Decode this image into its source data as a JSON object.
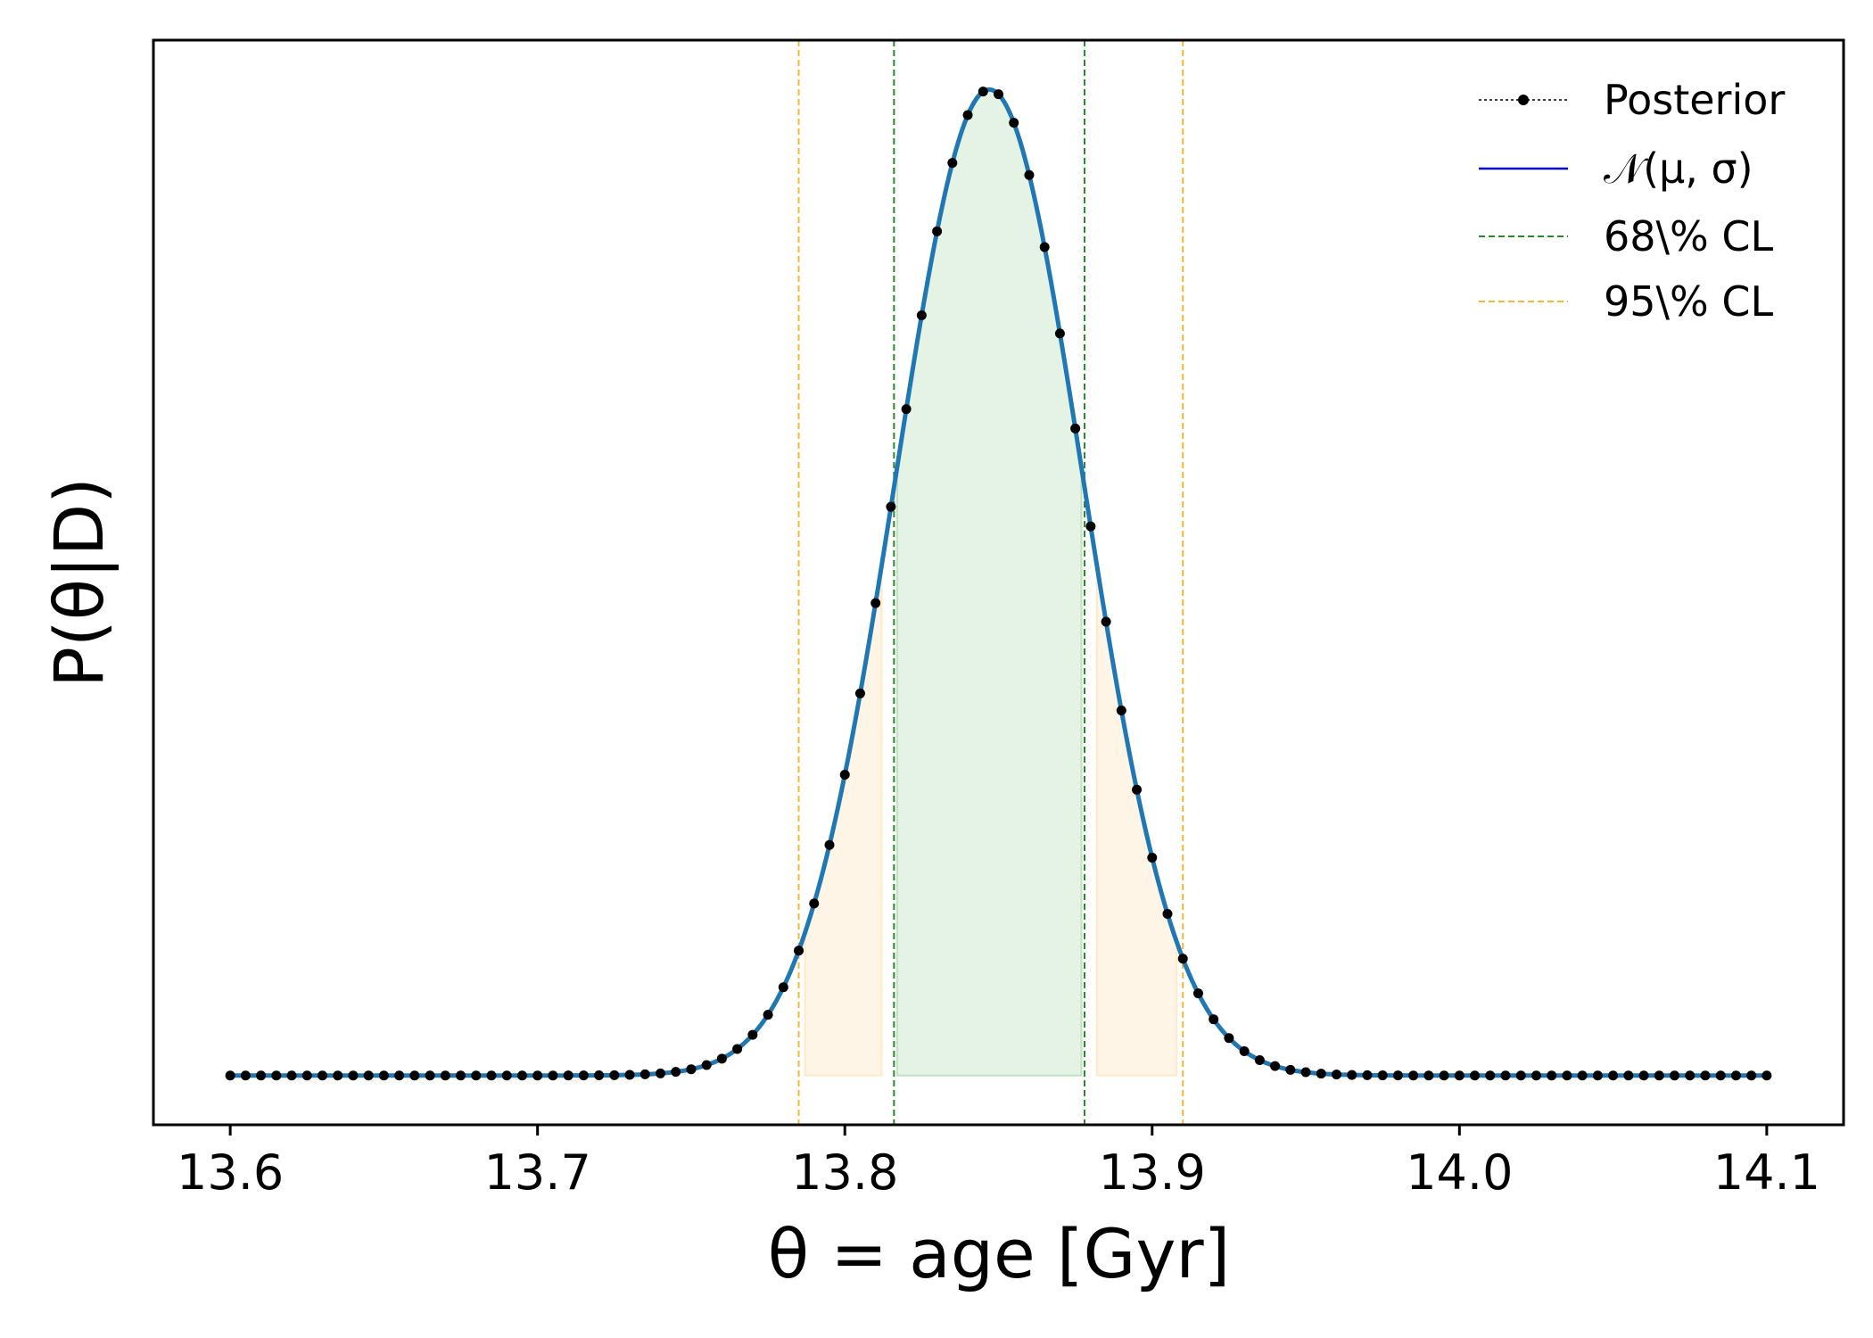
{
  "chart_data": {
    "type": "line",
    "xlabel": "θ = age [Gyr]",
    "ylabel": "P(θ|D)",
    "xlim": [
      13.575,
      14.125
    ],
    "ylim": [
      -0.05,
      1.05
    ],
    "x_ticks": [
      13.6,
      13.7,
      13.8,
      13.9,
      14.0,
      14.1
    ],
    "x_tick_labels": [
      "13.6",
      "13.7",
      "13.8",
      "13.9",
      "14.0",
      "14.1"
    ],
    "y_ticks_visible": false,
    "grid": false,
    "legend": {
      "position": "top-right",
      "entries": [
        {
          "label": "Posterior",
          "style": "dotted line with markers",
          "color": "#000000"
        },
        {
          "label": "𝒩(μ, σ)",
          "style": "solid line",
          "color": "#0000cc"
        },
        {
          "label": "68\\% CL",
          "style": "dashed line",
          "color": "#2a8a2a"
        },
        {
          "label": "95\\% CL",
          "style": "dashed line",
          "color": "#f5b82e"
        }
      ]
    },
    "series": [
      {
        "name": "Posterior",
        "type": "points",
        "x_start": 13.6,
        "x_end": 14.1,
        "x_step": 0.005,
        "mu": 13.847,
        "sigma": 0.0305,
        "peak": 1.0
      },
      {
        "name": "𝒩(μ, σ)",
        "type": "line",
        "mu": 13.847,
        "sigma": 0.0305,
        "peak": 1.0
      }
    ],
    "confidence_intervals": {
      "cl68": [
        13.816,
        13.878
      ],
      "cl95": [
        13.785,
        13.91
      ]
    },
    "shaded_regions": [
      {
        "region": "cl68",
        "x_range": [
          13.817,
          13.877
        ],
        "color": "#2ca02c",
        "opacity": 0.12
      },
      {
        "region": "cl95-left",
        "x_range": [
          13.787,
          13.812
        ],
        "color": "#ffbb55",
        "opacity": 0.15
      },
      {
        "region": "cl95-right",
        "x_range": [
          13.882,
          13.908
        ],
        "color": "#ffbb55",
        "opacity": 0.15
      }
    ],
    "colors": {
      "curve": "#1f77b4",
      "markers": "#000000",
      "cl68": "#2a8a2a",
      "cl95": "#f5b82e"
    }
  }
}
